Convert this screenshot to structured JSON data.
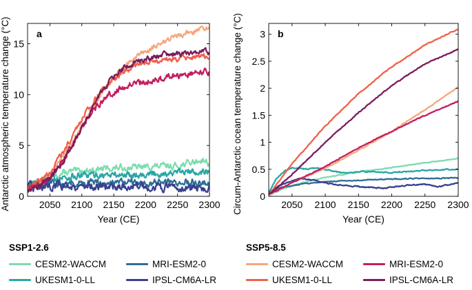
{
  "chart_data": [
    {
      "type": "line",
      "panel_label": "a",
      "xlabel": "Year (CE)",
      "ylabel": "Antarctic atmospheric temperature change (°C)",
      "xlim": [
        2015,
        2300
      ],
      "ylim": [
        0,
        17
      ],
      "xticks": [
        2050,
        2100,
        2150,
        2200,
        2250,
        2300
      ],
      "yticks": [
        0,
        5,
        10,
        15
      ],
      "grid": false,
      "series": [
        {
          "name": "CESM2-WACCM",
          "scenario": "SSP1-2.6",
          "color": "#7ddcb0",
          "x": [
            2015,
            2030,
            2045,
            2060,
            2080,
            2100,
            2130,
            2160,
            2200,
            2250,
            2290,
            2300
          ],
          "y": [
            1.2,
            1.5,
            1.8,
            2.1,
            2.4,
            2.5,
            2.7,
            2.8,
            2.9,
            3.0,
            3.6,
            3.2
          ],
          "noise": 0.35
        },
        {
          "name": "UKESM1-0-LL",
          "scenario": "SSP1-2.6",
          "color": "#2aa6a6",
          "x": [
            2015,
            2030,
            2045,
            2060,
            2080,
            2100,
            2130,
            2160,
            2200,
            2250,
            2290,
            2300
          ],
          "y": [
            1.1,
            1.3,
            1.6,
            1.8,
            1.9,
            2.0,
            2.1,
            2.1,
            2.2,
            2.3,
            2.5,
            2.4
          ],
          "noise": 0.4
        },
        {
          "name": "MRI-ESM2-0",
          "scenario": "SSP1-2.6",
          "color": "#2e6e96",
          "x": [
            2015,
            2040,
            2070,
            2100,
            2150,
            2200,
            2250,
            2300
          ],
          "y": [
            1.0,
            1.2,
            1.3,
            1.3,
            1.4,
            1.3,
            1.4,
            1.4
          ],
          "noise": 0.4
        },
        {
          "name": "IPSL-CM6A-LR",
          "scenario": "SSP1-2.6",
          "color": "#38418f",
          "x": [
            2015,
            2040,
            2070,
            2100,
            2150,
            2200,
            2250,
            2300
          ],
          "y": [
            0.9,
            1.0,
            1.1,
            1.0,
            1.0,
            0.9,
            0.9,
            0.8
          ],
          "noise": 0.45
        },
        {
          "name": "CESM2-WACCM",
          "scenario": "SSP5-8.5",
          "color": "#f5a87c",
          "x": [
            2015,
            2030,
            2050,
            2070,
            2090,
            2110,
            2130,
            2150,
            2170,
            2190,
            2210,
            2230,
            2250,
            2270,
            2290,
            2300
          ],
          "y": [
            0.8,
            1.2,
            2.0,
            3.8,
            5.8,
            8.0,
            10.0,
            11.7,
            12.9,
            13.8,
            14.6,
            15.2,
            15.7,
            16.1,
            16.5,
            16.6
          ],
          "noise": 0.3
        },
        {
          "name": "UKESM1-0-LL",
          "scenario": "SSP5-8.5",
          "color": "#f0604a",
          "x": [
            2015,
            2030,
            2050,
            2070,
            2090,
            2110,
            2130,
            2150,
            2170,
            2190,
            2210,
            2230,
            2250,
            2270,
            2290,
            2300
          ],
          "y": [
            0.8,
            1.3,
            2.3,
            4.3,
            6.5,
            8.6,
            10.4,
            11.6,
            12.4,
            12.9,
            13.2,
            13.4,
            13.5,
            13.6,
            13.8,
            13.7
          ],
          "noise": 0.3
        },
        {
          "name": "MRI-ESM2-0",
          "scenario": "SSP5-8.5",
          "color": "#c21f5c",
          "x": [
            2015,
            2030,
            2050,
            2070,
            2090,
            2110,
            2130,
            2150,
            2170,
            2190,
            2210,
            2230,
            2250,
            2270,
            2290,
            2300
          ],
          "y": [
            0.7,
            1.0,
            1.8,
            3.4,
            5.6,
            7.7,
            9.3,
            10.3,
            10.9,
            11.2,
            11.4,
            11.6,
            11.8,
            12.0,
            12.2,
            12.1
          ],
          "noise": 0.35
        },
        {
          "name": "IPSL-CM6A-LR",
          "scenario": "SSP5-8.5",
          "color": "#7a1d5c",
          "x": [
            2015,
            2030,
            2050,
            2070,
            2090,
            2110,
            2130,
            2150,
            2170,
            2190,
            2210,
            2230,
            2250,
            2270,
            2290,
            2300
          ],
          "y": [
            0.6,
            1.0,
            1.7,
            3.3,
            5.5,
            8.0,
            10.2,
            11.8,
            12.8,
            13.3,
            13.7,
            13.9,
            14.0,
            14.1,
            14.3,
            14.2
          ],
          "noise": 0.3
        }
      ]
    },
    {
      "type": "line",
      "panel_label": "b",
      "xlabel": "Year (CE)",
      "ylabel": "Circum-Antarctic ocean temperature change (°C)",
      "xlim": [
        2015,
        2300
      ],
      "ylim": [
        0,
        3.2
      ],
      "xticks": [
        2050,
        2100,
        2150,
        2200,
        2250,
        2300
      ],
      "yticks": [
        0,
        0.5,
        1,
        1.5,
        2,
        2.5,
        3
      ],
      "grid": false,
      "series": [
        {
          "name": "CESM2-WACCM",
          "scenario": "SSP1-2.6",
          "color": "#7ddcb0",
          "x": [
            2015,
            2030,
            2050,
            2080,
            2110,
            2150,
            2200,
            2250,
            2300
          ],
          "y": [
            0.02,
            0.1,
            0.2,
            0.3,
            0.37,
            0.45,
            0.53,
            0.62,
            0.7
          ],
          "noise": 0.008
        },
        {
          "name": "UKESM1-0-LL",
          "scenario": "SSP1-2.6",
          "color": "#2aa6a6",
          "x": [
            2015,
            2025,
            2040,
            2050,
            2070,
            2090,
            2110,
            2130,
            2160,
            2200,
            2250,
            2280,
            2300
          ],
          "y": [
            0.05,
            0.3,
            0.48,
            0.53,
            0.5,
            0.52,
            0.47,
            0.43,
            0.46,
            0.44,
            0.48,
            0.5,
            0.5
          ],
          "noise": 0.012
        },
        {
          "name": "MRI-ESM2-0",
          "scenario": "SSP1-2.6",
          "color": "#2e6e96",
          "x": [
            2015,
            2030,
            2060,
            2100,
            2150,
            2200,
            2250,
            2300
          ],
          "y": [
            0.05,
            0.15,
            0.22,
            0.27,
            0.3,
            0.32,
            0.33,
            0.34
          ],
          "noise": 0.01
        },
        {
          "name": "IPSL-CM6A-LR",
          "scenario": "SSP1-2.6",
          "color": "#38418f",
          "x": [
            2015,
            2030,
            2060,
            2080,
            2100,
            2130,
            2160,
            2190,
            2220,
            2250,
            2270,
            2290,
            2300
          ],
          "y": [
            0.05,
            0.2,
            0.33,
            0.3,
            0.25,
            0.2,
            0.17,
            0.15,
            0.2,
            0.22,
            0.18,
            0.22,
            0.25
          ],
          "noise": 0.012
        },
        {
          "name": "CESM2-WACCM",
          "scenario": "SSP5-8.5",
          "color": "#f5a87c",
          "x": [
            2015,
            2050,
            2100,
            2150,
            2200,
            2250,
            2300
          ],
          "y": [
            0.03,
            0.25,
            0.52,
            0.85,
            1.2,
            1.6,
            2.02
          ],
          "noise": 0.01
        },
        {
          "name": "UKESM1-0-LL",
          "scenario": "SSP5-8.5",
          "color": "#f0604a",
          "x": [
            2015,
            2050,
            2100,
            2150,
            2200,
            2250,
            2300
          ],
          "y": [
            0.03,
            0.6,
            1.3,
            1.9,
            2.4,
            2.8,
            3.1
          ],
          "noise": 0.01
        },
        {
          "name": "MRI-ESM2-0",
          "scenario": "SSP5-8.5",
          "color": "#c21f5c",
          "x": [
            2015,
            2050,
            2100,
            2150,
            2200,
            2250,
            2300
          ],
          "y": [
            0.03,
            0.25,
            0.55,
            0.9,
            1.2,
            1.5,
            1.76
          ],
          "noise": 0.01
        },
        {
          "name": "IPSL-CM6A-LR",
          "scenario": "SSP5-8.5",
          "color": "#7a1d5c",
          "x": [
            2015,
            2050,
            2100,
            2150,
            2200,
            2250,
            2300
          ],
          "y": [
            0.03,
            0.4,
            1.0,
            1.55,
            2.05,
            2.45,
            2.72
          ],
          "noise": 0.01
        }
      ]
    }
  ],
  "legend": {
    "ssp126": {
      "title": "SSP1-2.6",
      "items": [
        {
          "label": "CESM2-WACCM",
          "color": "#7ddcb0"
        },
        {
          "label": "MRI-ESM2-0",
          "color": "#2e6e96"
        },
        {
          "label": "UKESM1-0-LL",
          "color": "#2aa6a6"
        },
        {
          "label": "IPSL-CM6A-LR",
          "color": "#38418f"
        }
      ]
    },
    "ssp585": {
      "title": "SSP5-8.5",
      "items": [
        {
          "label": "CESM2-WACCM",
          "color": "#f5a87c"
        },
        {
          "label": "MRI-ESM2-0",
          "color": "#c21f5c"
        },
        {
          "label": "UKESM1-0-LL",
          "color": "#f0604a"
        },
        {
          "label": "IPSL-CM6A-LR",
          "color": "#7a1d5c"
        }
      ]
    }
  }
}
